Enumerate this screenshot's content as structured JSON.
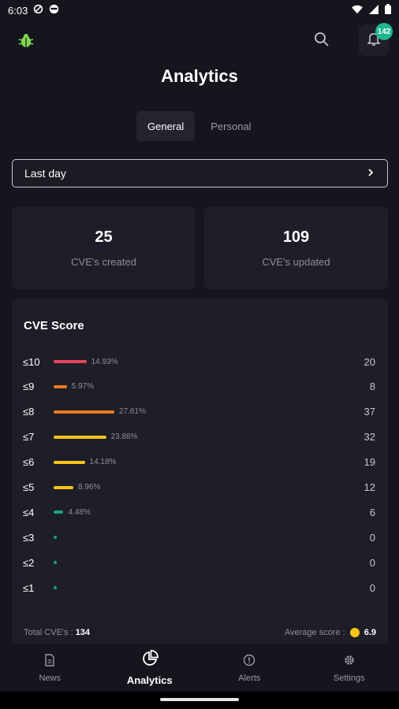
{
  "status_bar": {
    "time": "6:03",
    "icons": [
      "sync-off-icon",
      "cat-face-icon",
      "wifi-icon",
      "signal-icon",
      "battery-icon"
    ]
  },
  "header": {
    "logo": "bug-logo-icon",
    "search_icon": "search-icon",
    "notification_icon": "bell-icon",
    "notification_count": "142"
  },
  "page": {
    "title": "Analytics",
    "tabs": [
      {
        "label": "General",
        "active": true
      },
      {
        "label": "Personal",
        "active": false
      }
    ],
    "period_selector": {
      "value": "Last day",
      "icon": "chevron-right-icon"
    }
  },
  "stats": {
    "created": {
      "value": "25",
      "label": "CVE's created"
    },
    "updated": {
      "value": "109",
      "label": "CVE's updated"
    }
  },
  "cve_score": {
    "title": "CVE Score",
    "rows": [
      {
        "label": "≤10",
        "percent": "14.93%",
        "count": "20",
        "color": "#e5445b"
      },
      {
        "label": "≤9",
        "percent": "5.97%",
        "count": "8",
        "color": "#f07a1f"
      },
      {
        "label": "≤8",
        "percent": "27.61%",
        "count": "37",
        "color": "#f07a1f"
      },
      {
        "label": "≤7",
        "percent": "23.88%",
        "count": "32",
        "color": "#f5c518"
      },
      {
        "label": "≤6",
        "percent": "14.18%",
        "count": "19",
        "color": "#f5c518"
      },
      {
        "label": "≤5",
        "percent": "8.96%",
        "count": "12",
        "color": "#f5c518"
      },
      {
        "label": "≤4",
        "percent": "4.48%",
        "count": "6",
        "color": "#1fa07f"
      },
      {
        "label": "≤3",
        "percent": "",
        "count": "0",
        "color": "#1fa07f"
      },
      {
        "label": "≤2",
        "percent": "",
        "count": "0",
        "color": "#1fa07f"
      },
      {
        "label": "≤1",
        "percent": "",
        "count": "0",
        "color": "#1fa07f"
      }
    ],
    "footer": {
      "total_label": "Total CVE's :",
      "total_value": "134",
      "average_label": "Average score :",
      "average_value": "6.9",
      "average_color": "#f5c518"
    }
  },
  "bottom_nav": [
    {
      "label": "News",
      "icon": "document-icon",
      "active": false
    },
    {
      "label": "Analytics",
      "icon": "pie-chart-icon",
      "active": true
    },
    {
      "label": "Alerts",
      "icon": "alert-circle-icon",
      "active": false
    },
    {
      "label": "Settings",
      "icon": "gear-icon",
      "active": false
    }
  ]
}
